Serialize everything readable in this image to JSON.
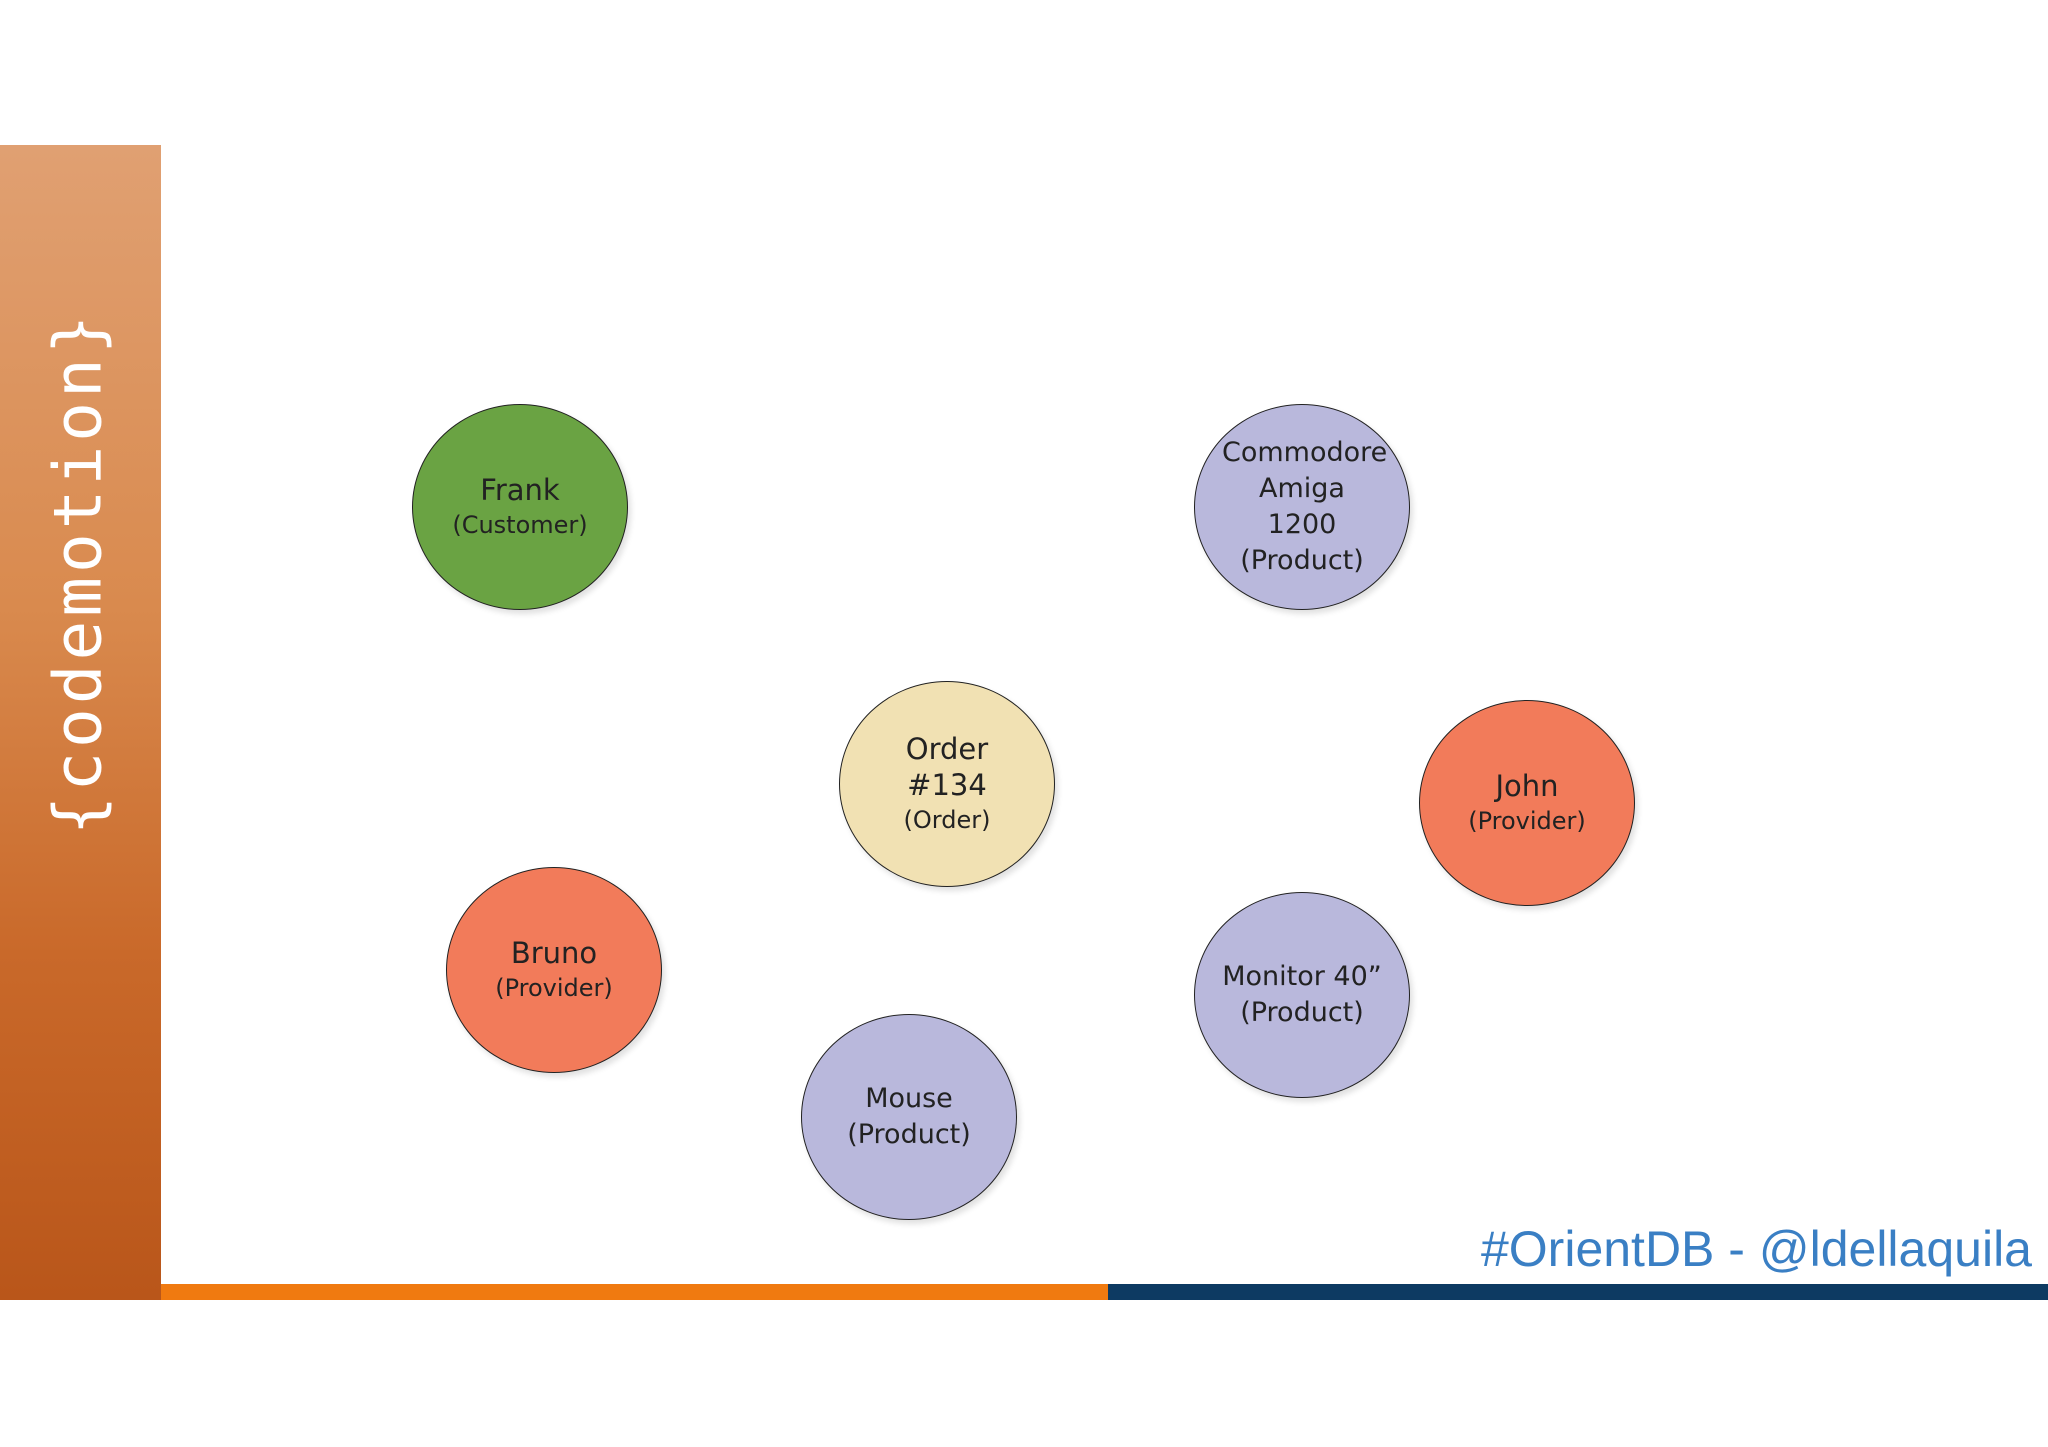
{
  "logo": "{codemotion}",
  "footer": "#OrientDB - @ldellaquila",
  "nodes": [
    {
      "label": "Frank",
      "type": "(Customer)",
      "color": "#6aa343"
    },
    {
      "label": "Commodore Amiga 1200",
      "type": "(Product)",
      "color": "#b9b8dc"
    },
    {
      "label": "Order #134",
      "type": "(Order)",
      "color": "#f1e1b3"
    },
    {
      "label": "John",
      "type": "(Provider)",
      "color": "#f27b5a"
    },
    {
      "label": "Bruno",
      "type": "(Provider)",
      "color": "#f27b5a"
    },
    {
      "label": "Monitor 40”",
      "type": "(Product)",
      "color": "#b9b8dc"
    },
    {
      "label": "Mouse",
      "type": "(Product)",
      "color": "#b9b8dc"
    }
  ]
}
